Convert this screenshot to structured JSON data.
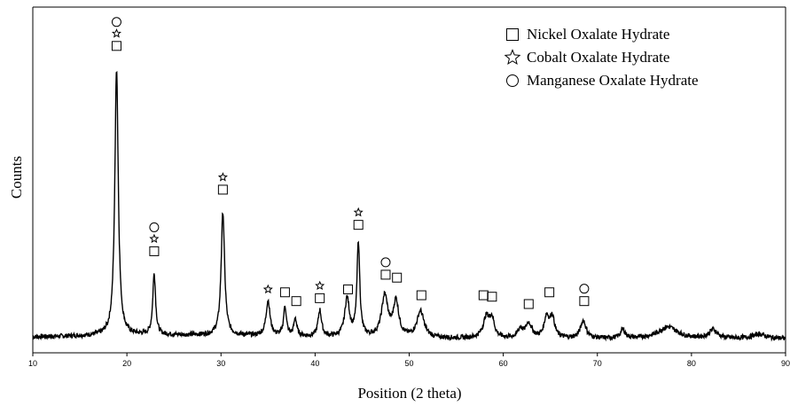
{
  "chart_data": {
    "type": "line",
    "title": "",
    "xlabel": "Position (2 theta)",
    "ylabel": "Counts",
    "xlim": [
      10,
      90
    ],
    "ylim": [
      0,
      100
    ],
    "x_ticks": [
      10,
      20,
      30,
      40,
      50,
      60,
      70,
      80,
      90
    ],
    "y_ticks_shown": false,
    "grid": false,
    "legend_position": "top-right",
    "legend": [
      {
        "marker": "square",
        "label": "Nickel Oxalate Hydrate"
      },
      {
        "marker": "star",
        "label": "Cobalt Oxalate Hydrate"
      },
      {
        "marker": "circle",
        "label": "Manganese Oxalate Hydrate"
      }
    ],
    "series": [
      {
        "baseline": 3,
        "color": "#000000",
        "peaks": [
          {
            "x": 18.9,
            "height": 91,
            "width": 0.22
          },
          {
            "x": 22.9,
            "height": 21,
            "width": 0.18
          },
          {
            "x": 30.2,
            "height": 42,
            "width": 0.22
          },
          {
            "x": 35.0,
            "height": 12,
            "width": 0.25
          },
          {
            "x": 36.8,
            "height": 10,
            "width": 0.18
          },
          {
            "x": 37.9,
            "height": 6,
            "width": 0.18
          },
          {
            "x": 40.5,
            "height": 9,
            "width": 0.22
          },
          {
            "x": 43.4,
            "height": 13,
            "width": 0.3
          },
          {
            "x": 44.6,
            "height": 32,
            "width": 0.18
          },
          {
            "x": 47.4,
            "height": 14,
            "width": 0.4
          },
          {
            "x": 48.6,
            "height": 12,
            "width": 0.35
          },
          {
            "x": 51.2,
            "height": 9,
            "width": 0.45
          },
          {
            "x": 58.2,
            "height": 7,
            "width": 0.4
          },
          {
            "x": 58.8,
            "height": 6,
            "width": 0.3
          },
          {
            "x": 61.8,
            "height": 3,
            "width": 0.3
          },
          {
            "x": 62.7,
            "height": 5,
            "width": 0.4
          },
          {
            "x": 64.6,
            "height": 7,
            "width": 0.3
          },
          {
            "x": 65.2,
            "height": 7,
            "width": 0.3
          },
          {
            "x": 68.5,
            "height": 6,
            "width": 0.35
          },
          {
            "x": 72.7,
            "height": 3,
            "width": 0.3
          },
          {
            "x": 77.5,
            "height": 4,
            "width": 1.2
          },
          {
            "x": 82.3,
            "height": 3,
            "width": 0.5
          },
          {
            "x": 87.2,
            "height": 1.5,
            "width": 0.8
          }
        ]
      }
    ],
    "annotations": [
      {
        "x": 18.9,
        "y": 101,
        "markers": [
          "square",
          "star",
          "circle"
        ]
      },
      {
        "x": 22.9,
        "y": 31,
        "markers": [
          "square",
          "star",
          "circle"
        ]
      },
      {
        "x": 30.2,
        "y": 52,
        "markers": [
          "square",
          "star"
        ]
      },
      {
        "x": 35.0,
        "y": 18,
        "markers": [
          "star"
        ]
      },
      {
        "x": 36.8,
        "y": 17,
        "markers": [
          "square"
        ]
      },
      {
        "x": 38.0,
        "y": 14,
        "markers": [
          "square"
        ]
      },
      {
        "x": 40.5,
        "y": 15,
        "markers": [
          "square",
          "star"
        ]
      },
      {
        "x": 43.5,
        "y": 18,
        "markers": [
          "square"
        ]
      },
      {
        "x": 44.6,
        "y": 40,
        "markers": [
          "square",
          "star"
        ]
      },
      {
        "x": 47.5,
        "y": 23,
        "markers": [
          "square",
          "circle"
        ]
      },
      {
        "x": 48.7,
        "y": 22,
        "markers": [
          "square"
        ]
      },
      {
        "x": 51.3,
        "y": 16,
        "markers": [
          "square"
        ]
      },
      {
        "x": 57.9,
        "y": 16,
        "markers": [
          "square"
        ]
      },
      {
        "x": 58.8,
        "y": 15.5,
        "markers": [
          "square"
        ]
      },
      {
        "x": 62.7,
        "y": 13,
        "markers": [
          "square"
        ]
      },
      {
        "x": 64.9,
        "y": 17,
        "markers": [
          "square"
        ]
      },
      {
        "x": 68.6,
        "y": 14,
        "markers": [
          "square",
          "circle"
        ]
      }
    ]
  }
}
